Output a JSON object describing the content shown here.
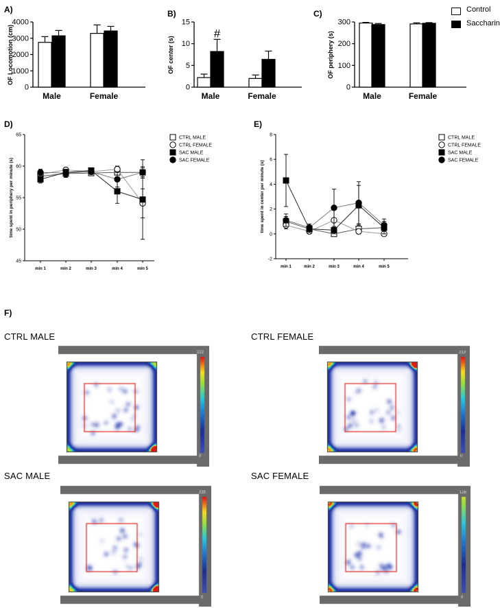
{
  "colors": {
    "control": "#ffffff",
    "saccharin": "#000000",
    "arena_frame": "#6b6b6b",
    "zone_red": "#e0201c",
    "heat_low": "#1e2a8f"
  },
  "legend_top": {
    "control": "Control",
    "saccharin": "Saccharin"
  },
  "panel_labels": {
    "A": "A)",
    "B": "B)",
    "C": "C)",
    "D": "D)",
    "E": "E)",
    "F": "F)"
  },
  "chart_data": [
    {
      "id": "A",
      "type": "bar",
      "ylabel": "OF Locomotion (cm)",
      "categories": [
        "Male",
        "Female"
      ],
      "series": [
        {
          "name": "Control",
          "values": [
            2750,
            3300
          ],
          "errors": [
            350,
            520
          ]
        },
        {
          "name": "Saccharin",
          "values": [
            3150,
            3450
          ],
          "errors": [
            330,
            280
          ]
        }
      ],
      "ylim": [
        0,
        4000
      ],
      "yticks": [
        "0",
        "1000",
        "2000",
        "3000",
        "4000"
      ]
    },
    {
      "id": "B",
      "type": "bar",
      "ylabel": "OF center (s)",
      "categories": [
        "Male",
        "Female"
      ],
      "series": [
        {
          "name": "Control",
          "values": [
            2.2,
            2.0
          ],
          "errors": [
            0.8,
            0.8
          ]
        },
        {
          "name": "Saccharin",
          "values": [
            8.2,
            6.4
          ],
          "errors": [
            2.8,
            1.9
          ]
        }
      ],
      "ylim": [
        0,
        15
      ],
      "yticks": [
        "0",
        "5",
        "10",
        "15"
      ],
      "annotation": "#"
    },
    {
      "id": "C",
      "type": "bar",
      "ylabel": "OF periphery (s)",
      "categories": [
        "Male",
        "Female"
      ],
      "series": [
        {
          "name": "Control",
          "values": [
            295,
            291
          ],
          "errors": [
            3,
            5
          ]
        },
        {
          "name": "Saccharin",
          "values": [
            288,
            294
          ],
          "errors": [
            5,
            3
          ]
        }
      ],
      "ylim": [
        0,
        300
      ],
      "yticks": [
        "0",
        "100",
        "200",
        "300"
      ]
    },
    {
      "id": "D",
      "type": "line",
      "ylabel": "time spent in periphery per minute (s)",
      "x": [
        "min 1",
        "min 2",
        "min 3",
        "min 4",
        "min 5"
      ],
      "ylim": [
        45,
        65
      ],
      "yticks": [
        "45",
        "50",
        "55",
        "60",
        "65"
      ],
      "series": [
        {
          "name": "CTRL MALE",
          "marker": "open-square",
          "values": [
            58.4,
            58.8,
            58.9,
            59.0,
            59.0
          ],
          "errors": [
            0.6,
            0.6,
            0.4,
            0.7,
            0.9
          ]
        },
        {
          "name": "CTRL FEMALE",
          "marker": "open-circle",
          "values": [
            58.7,
            59.4,
            59.1,
            59.5,
            54.1
          ],
          "errors": [
            0.5,
            0.4,
            0.4,
            0.5,
            2.3
          ]
        },
        {
          "name": "SAC MALE",
          "marker": "filled-square",
          "values": [
            57.9,
            59.0,
            59.3,
            56.0,
            54.7
          ],
          "errors": [
            0.6,
            0.5,
            0.4,
            1.9,
            6.3
          ]
        },
        {
          "name": "SAC FEMALE",
          "marker": "filled-circle",
          "values": [
            59.0,
            58.9,
            59.1,
            57.9,
            59.0
          ],
          "errors": [
            0.5,
            0.6,
            0.4,
            1.2,
            0.7
          ]
        }
      ]
    },
    {
      "id": "E",
      "type": "line",
      "ylabel": "time spent in center per minute (s)",
      "x": [
        "min 1",
        "min 2",
        "min 3",
        "min 4",
        "min 5"
      ],
      "ylim": [
        -2,
        8
      ],
      "yticks": [
        "-2",
        "0",
        "2",
        "4",
        "6",
        "8"
      ],
      "series": [
        {
          "name": "CTRL MALE",
          "marker": "open-square",
          "values": [
            1.0,
            0.4,
            0.0,
            0.4,
            0.5
          ],
          "errors": [
            0.4,
            0.3,
            0.1,
            0.4,
            0.3
          ]
        },
        {
          "name": "CTRL FEMALE",
          "marker": "open-circle",
          "values": [
            0.7,
            0.2,
            1.1,
            0.2,
            0.0
          ],
          "errors": [
            0.3,
            0.2,
            0.8,
            0.2,
            0.1
          ]
        },
        {
          "name": "SAC MALE",
          "marker": "filled-square",
          "values": [
            4.3,
            0.4,
            0.3,
            2.3,
            0.5
          ],
          "errors": [
            2.1,
            0.3,
            0.3,
            1.6,
            0.5
          ]
        },
        {
          "name": "SAC FEMALE",
          "marker": "filled-circle",
          "values": [
            1.1,
            0.5,
            2.1,
            2.5,
            0.7
          ],
          "errors": [
            0.5,
            0.3,
            1.5,
            1.7,
            0.5
          ]
        }
      ]
    }
  ],
  "heatmaps": [
    {
      "label": "CTRL MALE",
      "scale_max": "222",
      "scale_min": "0"
    },
    {
      "label": "CTRL FEMALE",
      "scale_max": "213",
      "scale_min": "0"
    },
    {
      "label": "SAC MALE",
      "scale_max": "235",
      "scale_min": "0"
    },
    {
      "label": "SAC FEMALE",
      "scale_max": "126",
      "scale_min": "0"
    }
  ]
}
